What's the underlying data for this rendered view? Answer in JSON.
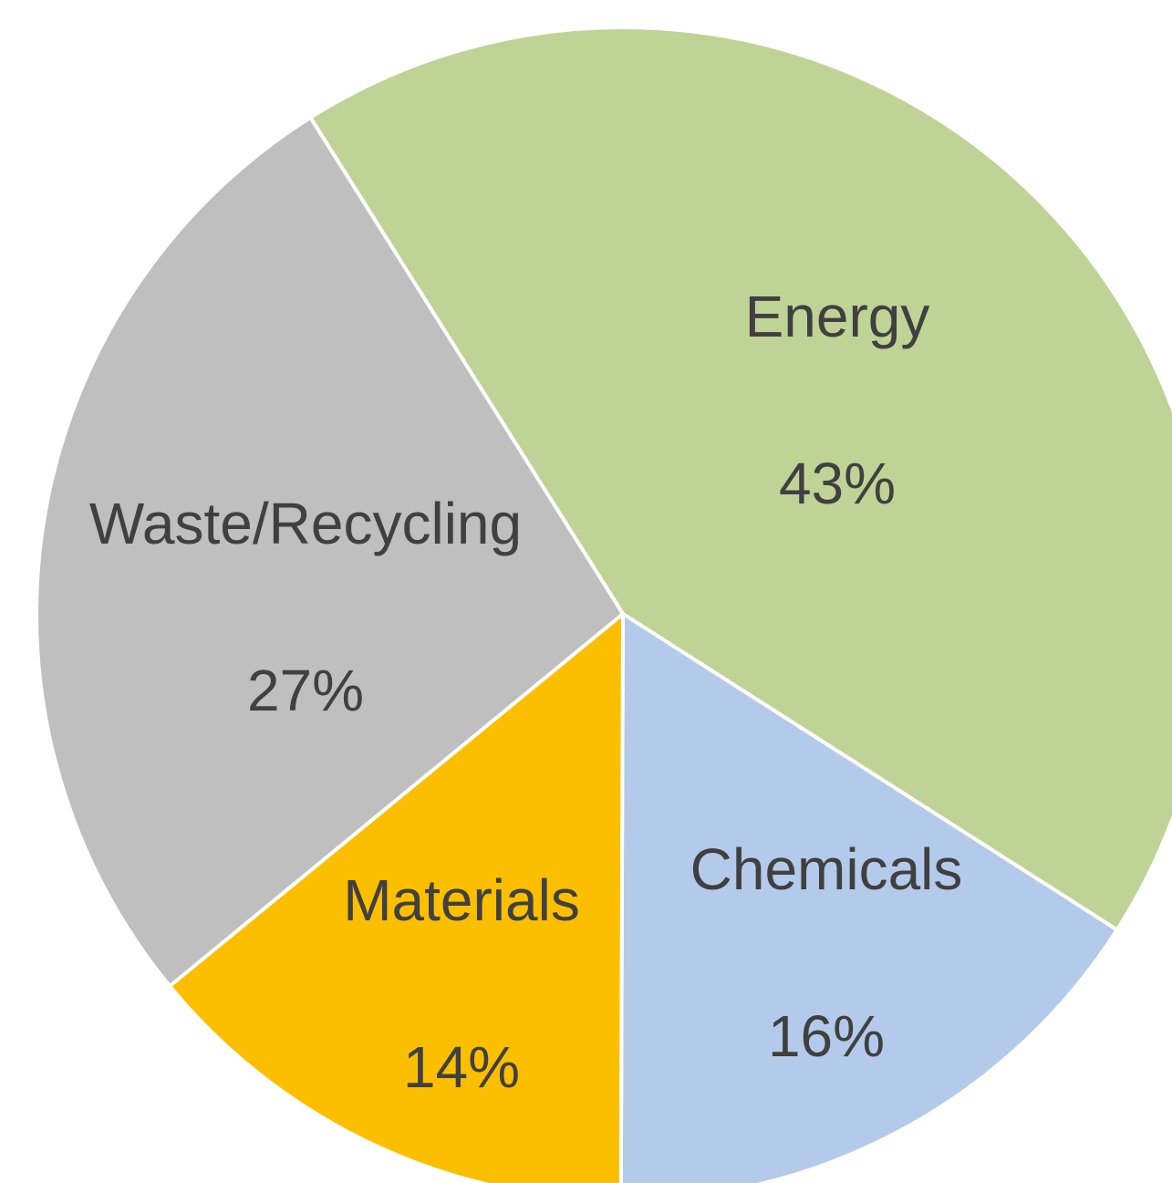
{
  "chart_data": {
    "type": "pie",
    "title": "",
    "slices": [
      {
        "label": "Energy",
        "value": 43,
        "value_label": "43%",
        "color": "#C0D396"
      },
      {
        "label": "Chemicals",
        "value": 16,
        "value_label": "16%",
        "color": "#B4CAEA"
      },
      {
        "label": "Materials",
        "value": 14,
        "value_label": "14%",
        "color": "#FCBF00"
      },
      {
        "label": "Waste/Recycling",
        "value": 27,
        "value_label": "27%",
        "color": "#BFBFBF"
      }
    ],
    "legend": "none",
    "data_labels": "inside"
  }
}
